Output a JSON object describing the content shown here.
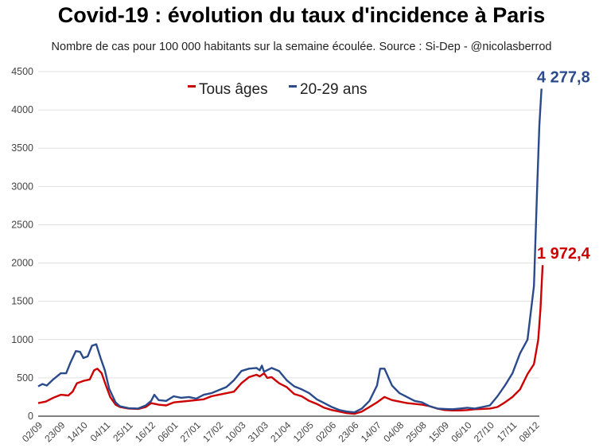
{
  "title": "Covid-19 : évolution du taux d'incidence à Paris",
  "subtitle": "Nombre de cas pour 100 000 habitants sur la semaine écoulée. Source : Si-Dep - @nicolasberrod",
  "chart_data": {
    "type": "line",
    "title": "Covid-19 : évolution du taux d'incidence à Paris",
    "xlabel": "",
    "ylabel": "",
    "ylim": [
      0,
      4500
    ],
    "yticks": [
      0,
      500,
      1000,
      1500,
      2000,
      2500,
      3000,
      3500,
      4000,
      4500
    ],
    "x_range": [
      0,
      466
    ],
    "xtick_labels": [
      "02/09",
      "23/09",
      "14/10",
      "04/11",
      "25/11",
      "16/12",
      "06/01",
      "27/01",
      "17/02",
      "10/03",
      "31/03",
      "21/04",
      "12/05",
      "02/06",
      "23/06",
      "14/07",
      "04/08",
      "25/08",
      "15/09",
      "06/10",
      "27/10",
      "17/11",
      "08/12"
    ],
    "xtick_positions": [
      0,
      21,
      42,
      63,
      84,
      105,
      126,
      147,
      168,
      189,
      210,
      231,
      252,
      273,
      294,
      315,
      336,
      357,
      378,
      399,
      420,
      441,
      462
    ],
    "grid": true,
    "legend_position": "top-center",
    "series": [
      {
        "name": "Tous âges",
        "color": "#cc0000",
        "end_label": "1 972,4",
        "points": [
          [
            0,
            170
          ],
          [
            7,
            190
          ],
          [
            14,
            240
          ],
          [
            21,
            280
          ],
          [
            28,
            270
          ],
          [
            32,
            320
          ],
          [
            36,
            430
          ],
          [
            42,
            460
          ],
          [
            48,
            480
          ],
          [
            52,
            600
          ],
          [
            55,
            620
          ],
          [
            59,
            560
          ],
          [
            63,
            400
          ],
          [
            67,
            250
          ],
          [
            72,
            150
          ],
          [
            76,
            120
          ],
          [
            84,
            100
          ],
          [
            93,
            95
          ],
          [
            100,
            120
          ],
          [
            105,
            170
          ],
          [
            112,
            150
          ],
          [
            119,
            140
          ],
          [
            126,
            180
          ],
          [
            140,
            200
          ],
          [
            154,
            220
          ],
          [
            161,
            260
          ],
          [
            168,
            280
          ],
          [
            182,
            320
          ],
          [
            189,
            430
          ],
          [
            196,
            510
          ],
          [
            203,
            540
          ],
          [
            206,
            520
          ],
          [
            210,
            560
          ],
          [
            213,
            500
          ],
          [
            217,
            510
          ],
          [
            224,
            430
          ],
          [
            231,
            380
          ],
          [
            238,
            290
          ],
          [
            245,
            260
          ],
          [
            252,
            200
          ],
          [
            259,
            160
          ],
          [
            266,
            110
          ],
          [
            273,
            80
          ],
          [
            280,
            60
          ],
          [
            287,
            40
          ],
          [
            294,
            30
          ],
          [
            301,
            60
          ],
          [
            308,
            120
          ],
          [
            315,
            180
          ],
          [
            322,
            250
          ],
          [
            329,
            210
          ],
          [
            336,
            190
          ],
          [
            343,
            170
          ],
          [
            350,
            160
          ],
          [
            357,
            150
          ],
          [
            364,
            130
          ],
          [
            371,
            100
          ],
          [
            378,
            80
          ],
          [
            385,
            75
          ],
          [
            392,
            75
          ],
          [
            399,
            80
          ],
          [
            406,
            90
          ],
          [
            413,
            95
          ],
          [
            420,
            100
          ],
          [
            427,
            120
          ],
          [
            434,
            180
          ],
          [
            441,
            250
          ],
          [
            448,
            350
          ],
          [
            455,
            550
          ],
          [
            461,
            680
          ],
          [
            465,
            1000
          ],
          [
            467,
            1400
          ],
          [
            469,
            1972.4
          ]
        ]
      },
      {
        "name": "20-29 ans",
        "color": "#2a4a8c",
        "end_label": "4 277,8",
        "points": [
          [
            0,
            390
          ],
          [
            4,
            420
          ],
          [
            8,
            400
          ],
          [
            14,
            480
          ],
          [
            21,
            560
          ],
          [
            26,
            560
          ],
          [
            30,
            700
          ],
          [
            35,
            850
          ],
          [
            39,
            840
          ],
          [
            42,
            760
          ],
          [
            46,
            780
          ],
          [
            50,
            920
          ],
          [
            54,
            940
          ],
          [
            58,
            760
          ],
          [
            62,
            600
          ],
          [
            66,
            360
          ],
          [
            72,
            180
          ],
          [
            76,
            130
          ],
          [
            84,
            105
          ],
          [
            93,
            100
          ],
          [
            100,
            140
          ],
          [
            105,
            200
          ],
          [
            108,
            280
          ],
          [
            112,
            210
          ],
          [
            119,
            200
          ],
          [
            126,
            260
          ],
          [
            133,
            240
          ],
          [
            140,
            250
          ],
          [
            147,
            230
          ],
          [
            154,
            280
          ],
          [
            161,
            300
          ],
          [
            168,
            340
          ],
          [
            175,
            380
          ],
          [
            182,
            470
          ],
          [
            189,
            590
          ],
          [
            196,
            620
          ],
          [
            203,
            630
          ],
          [
            206,
            600
          ],
          [
            208,
            660
          ],
          [
            210,
            580
          ],
          [
            217,
            630
          ],
          [
            224,
            590
          ],
          [
            231,
            470
          ],
          [
            238,
            390
          ],
          [
            245,
            350
          ],
          [
            252,
            300
          ],
          [
            259,
            220
          ],
          [
            266,
            170
          ],
          [
            273,
            120
          ],
          [
            280,
            80
          ],
          [
            287,
            60
          ],
          [
            294,
            50
          ],
          [
            301,
            100
          ],
          [
            308,
            200
          ],
          [
            315,
            400
          ],
          [
            318,
            620
          ],
          [
            322,
            620
          ],
          [
            329,
            400
          ],
          [
            336,
            300
          ],
          [
            343,
            250
          ],
          [
            350,
            200
          ],
          [
            357,
            180
          ],
          [
            364,
            130
          ],
          [
            371,
            100
          ],
          [
            378,
            95
          ],
          [
            385,
            90
          ],
          [
            392,
            100
          ],
          [
            399,
            110
          ],
          [
            406,
            100
          ],
          [
            413,
            120
          ],
          [
            420,
            140
          ],
          [
            427,
            260
          ],
          [
            434,
            400
          ],
          [
            441,
            560
          ],
          [
            448,
            820
          ],
          [
            455,
            1000
          ],
          [
            461,
            1700
          ],
          [
            464,
            3000
          ],
          [
            466,
            3800
          ],
          [
            468,
            4277.8
          ]
        ]
      }
    ]
  }
}
